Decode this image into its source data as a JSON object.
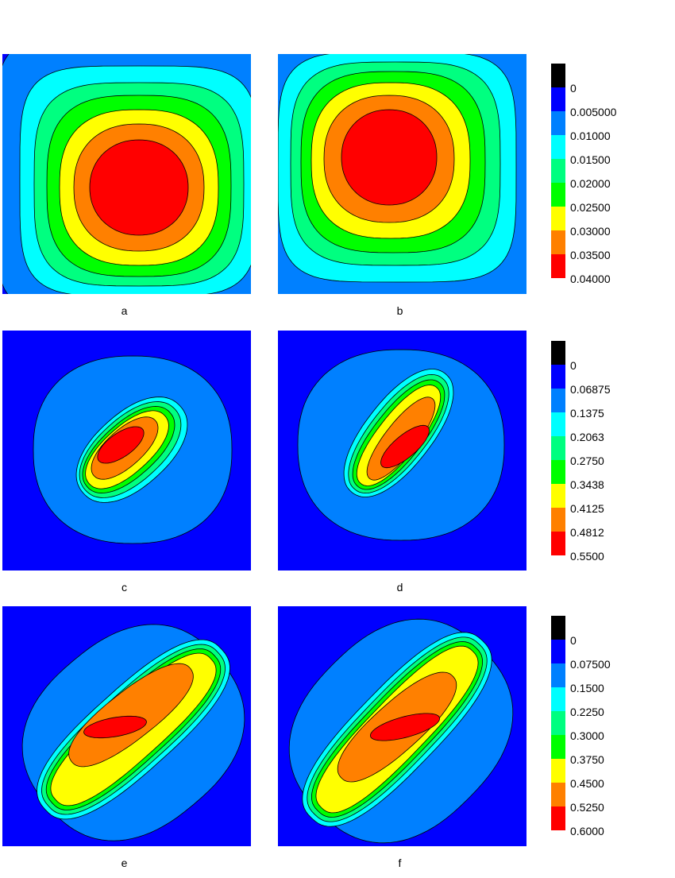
{
  "panels": [
    "a",
    "b",
    "c",
    "d",
    "e",
    "f"
  ],
  "colors": [
    "#000000",
    "#0000ff",
    "#0080ff",
    "#00ffff",
    "#00ff80",
    "#00ff00",
    "#ffff00",
    "#ff8000",
    "#ff0000"
  ],
  "colorbars": [
    {
      "levels": [
        0,
        {
          "value": 0.005,
          "label": "0.005000"
        },
        {
          "value": 0.01,
          "label": "0.01000"
        },
        {
          "value": 0.015,
          "label": "0.01500"
        },
        {
          "value": 0.02,
          "label": "0.02000"
        },
        {
          "value": 0.025,
          "label": "0.02500"
        },
        {
          "value": 0.03,
          "label": "0.03000"
        },
        {
          "value": 0.035,
          "label": "0.03500"
        },
        {
          "value": 0.04,
          "label": "0.04000"
        }
      ]
    },
    {
      "levels": [
        0,
        0.06875,
        0.1375,
        0.2063,
        {
          "value": 0.275,
          "label": "0.2750"
        },
        0.3438,
        0.4125,
        0.4812,
        {
          "value": 0.55,
          "label": "0.5500"
        }
      ]
    },
    {
      "levels": [
        0,
        {
          "value": 0.075,
          "label": "0.07500"
        },
        {
          "value": 0.15,
          "label": "0.1500"
        },
        {
          "value": 0.225,
          "label": "0.2250"
        },
        {
          "value": 0.3,
          "label": "0.3000"
        },
        {
          "value": 0.375,
          "label": "0.3750"
        },
        {
          "value": 0.45,
          "label": "0.4500"
        },
        {
          "value": 0.525,
          "label": "0.5250"
        },
        {
          "value": 0.6,
          "label": "0.6000"
        }
      ]
    }
  ]
}
